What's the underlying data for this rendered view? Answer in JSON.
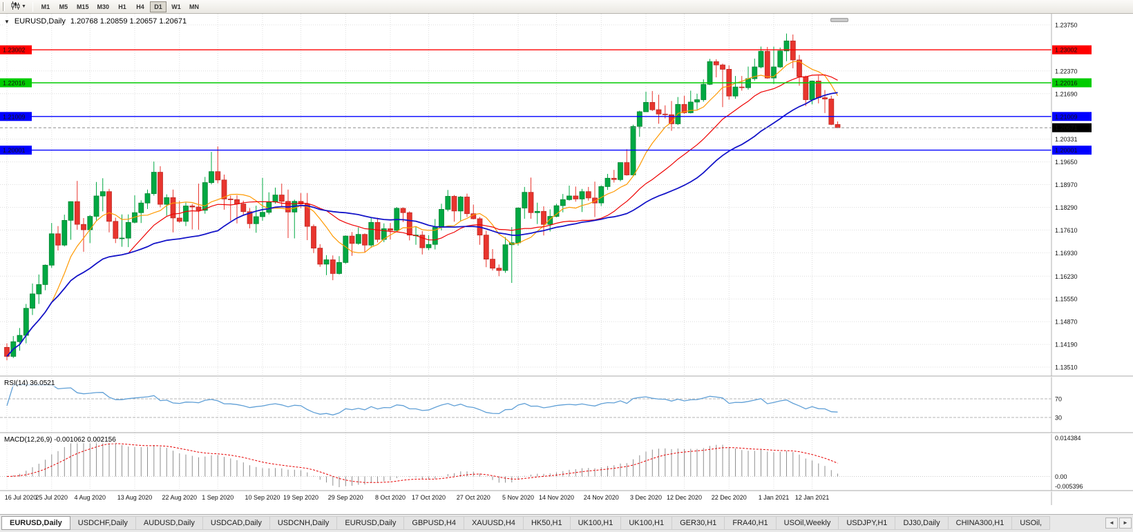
{
  "toolbar": {
    "chart_type_button": "candlestick-chart",
    "timeframes": [
      {
        "label": "M1",
        "active": false
      },
      {
        "label": "M5",
        "active": false
      },
      {
        "label": "M15",
        "active": false
      },
      {
        "label": "M30",
        "active": false
      },
      {
        "label": "H1",
        "active": false
      },
      {
        "label": "H4",
        "active": false
      },
      {
        "label": "D1",
        "active": true
      },
      {
        "label": "W1",
        "active": false
      },
      {
        "label": "MN",
        "active": false
      }
    ]
  },
  "chart": {
    "title": "EURUSD,Daily",
    "ohlc_text": "1.20768 1.20859 1.20657 1.20671",
    "collapse_glyph": "▼"
  },
  "tabs": {
    "items": [
      "EURUSD,Daily",
      "USDCHF,Daily",
      "AUDUSD,Daily",
      "USDCAD,Daily",
      "USDCNH,Daily",
      "EURUSD,Daily",
      "GBPUSD,H4",
      "XAUUSD,H4",
      "HK50,H1",
      "UK100,H1",
      "UK100,H1",
      "GER30,H1",
      "FRA40,H1",
      "USOil,Weekly",
      "USDJPY,H1",
      "DJ30,Daily",
      "CHINA300,H1",
      "USOil,"
    ],
    "active_index": 0,
    "scroll_left_glyph": "◄",
    "scroll_right_glyph": "►"
  },
  "chart_data": {
    "type": "candlestick",
    "symbol": "EURUSD",
    "period": "Daily",
    "quote": {
      "open": "1.20768",
      "high": "1.20859",
      "low": "1.20657",
      "close": "1.20671"
    },
    "start_date": "2020-07-16",
    "end_date": "2021-01-18",
    "candles": [
      [
        1.141,
        1.1422,
        1.1371,
        1.1383
      ],
      [
        1.1383,
        1.1444,
        1.1378,
        1.1427
      ],
      [
        1.1427,
        1.1468,
        1.14,
        1.1446
      ],
      [
        1.1446,
        1.154,
        1.1422,
        1.1527
      ],
      [
        1.1527,
        1.1601,
        1.1507,
        1.157
      ],
      [
        1.157,
        1.1628,
        1.154,
        1.1598
      ],
      [
        1.1598,
        1.1658,
        1.1581,
        1.1656
      ],
      [
        1.1656,
        1.1782,
        1.1648,
        1.175
      ],
      [
        1.175,
        1.1773,
        1.17,
        1.1716
      ],
      [
        1.1716,
        1.1807,
        1.1712,
        1.179
      ],
      [
        1.179,
        1.1847,
        1.1732,
        1.1846
      ],
      [
        1.1846,
        1.1908,
        1.1762,
        1.1778
      ],
      [
        1.1778,
        1.1797,
        1.1696,
        1.1762
      ],
      [
        1.1762,
        1.1806,
        1.1722,
        1.1802
      ],
      [
        1.1802,
        1.1905,
        1.179,
        1.1863
      ],
      [
        1.1863,
        1.1916,
        1.1817,
        1.1876
      ],
      [
        1.1876,
        1.1884,
        1.1754,
        1.1787
      ],
      [
        1.1787,
        1.1798,
        1.1722,
        1.1736
      ],
      [
        1.1736,
        1.1808,
        1.1711,
        1.1737
      ],
      [
        1.1737,
        1.1808,
        1.171,
        1.1784
      ],
      [
        1.1784,
        1.1865,
        1.1781,
        1.1813
      ],
      [
        1.1813,
        1.185,
        1.1782,
        1.1842
      ],
      [
        1.1842,
        1.1882,
        1.1824,
        1.187
      ],
      [
        1.187,
        1.1966,
        1.1864,
        1.1934
      ],
      [
        1.1934,
        1.1952,
        1.1829,
        1.1838
      ],
      [
        1.1838,
        1.1868,
        1.1804,
        1.1858
      ],
      [
        1.1858,
        1.1882,
        1.1754,
        1.1797
      ],
      [
        1.1797,
        1.1848,
        1.1783,
        1.1787
      ],
      [
        1.1787,
        1.1843,
        1.1773,
        1.1833
      ],
      [
        1.1833,
        1.1839,
        1.1763,
        1.183
      ],
      [
        1.183,
        1.19,
        1.1762,
        1.182
      ],
      [
        1.182,
        1.192,
        1.181,
        1.1903
      ],
      [
        1.1903,
        1.1995,
        1.1898,
        1.1936
      ],
      [
        1.1936,
        1.2011,
        1.1901,
        1.1911
      ],
      [
        1.1911,
        1.1927,
        1.1822,
        1.1854
      ],
      [
        1.1854,
        1.1864,
        1.1789,
        1.1852
      ],
      [
        1.1852,
        1.1865,
        1.1781,
        1.1839
      ],
      [
        1.1839,
        1.1849,
        1.1804,
        1.1816
      ],
      [
        1.1816,
        1.1827,
        1.1766,
        1.178
      ],
      [
        1.178,
        1.1834,
        1.1753,
        1.1801
      ],
      [
        1.1801,
        1.1917,
        1.1789,
        1.1814
      ],
      [
        1.1814,
        1.1874,
        1.1808,
        1.1845
      ],
      [
        1.1845,
        1.1888,
        1.184,
        1.1866
      ],
      [
        1.1866,
        1.19,
        1.1829,
        1.1847
      ],
      [
        1.1847,
        1.1882,
        1.1737,
        1.1815
      ],
      [
        1.1815,
        1.1852,
        1.1736,
        1.1847
      ],
      [
        1.1847,
        1.1872,
        1.1827,
        1.1839
      ],
      [
        1.1839,
        1.1872,
        1.1731,
        1.1772
      ],
      [
        1.1772,
        1.1778,
        1.1692,
        1.1707
      ],
      [
        1.1707,
        1.1719,
        1.1651,
        1.1659
      ],
      [
        1.1659,
        1.1686,
        1.1626,
        1.1672
      ],
      [
        1.1672,
        1.1685,
        1.1611,
        1.1631
      ],
      [
        1.1631,
        1.1683,
        1.1628,
        1.1664
      ],
      [
        1.1664,
        1.1745,
        1.166,
        1.1743
      ],
      [
        1.1743,
        1.1755,
        1.1684,
        1.1721
      ],
      [
        1.1721,
        1.1769,
        1.1717,
        1.1748
      ],
      [
        1.1748,
        1.1751,
        1.1695,
        1.1716
      ],
      [
        1.1716,
        1.1797,
        1.1708,
        1.1784
      ],
      [
        1.1784,
        1.1798,
        1.1724,
        1.1733
      ],
      [
        1.1733,
        1.1781,
        1.1725,
        1.1765
      ],
      [
        1.1765,
        1.1782,
        1.1733,
        1.176
      ],
      [
        1.176,
        1.183,
        1.1758,
        1.1826
      ],
      [
        1.1826,
        1.1829,
        1.1785,
        1.1813
      ],
      [
        1.1813,
        1.1817,
        1.173,
        1.1746
      ],
      [
        1.1746,
        1.1771,
        1.1717,
        1.1746
      ],
      [
        1.1746,
        1.1758,
        1.1688,
        1.1708
      ],
      [
        1.1708,
        1.1746,
        1.1701,
        1.1718
      ],
      [
        1.1718,
        1.1794,
        1.1703,
        1.1769
      ],
      [
        1.1769,
        1.184,
        1.176,
        1.1823
      ],
      [
        1.1823,
        1.1881,
        1.1817,
        1.1862
      ],
      [
        1.1862,
        1.1866,
        1.1786,
        1.1818
      ],
      [
        1.1818,
        1.1863,
        1.1787,
        1.186
      ],
      [
        1.186,
        1.187,
        1.18,
        1.181
      ],
      [
        1.181,
        1.1837,
        1.1793,
        1.1795
      ],
      [
        1.1795,
        1.18,
        1.1717,
        1.1746
      ],
      [
        1.1746,
        1.1759,
        1.165,
        1.1674
      ],
      [
        1.1674,
        1.1704,
        1.164,
        1.1647
      ],
      [
        1.1647,
        1.1658,
        1.1623,
        1.164
      ],
      [
        1.164,
        1.174,
        1.1633,
        1.1717
      ],
      [
        1.1717,
        1.177,
        1.1603,
        1.1723
      ],
      [
        1.1723,
        1.1829,
        1.1715,
        1.1827
      ],
      [
        1.1827,
        1.189,
        1.1795,
        1.1874
      ],
      [
        1.1874,
        1.1918,
        1.1795,
        1.1813
      ],
      [
        1.1813,
        1.1843,
        1.1779,
        1.1817
      ],
      [
        1.1817,
        1.1832,
        1.1745,
        1.1778
      ],
      [
        1.1778,
        1.1823,
        1.1757,
        1.1802
      ],
      [
        1.1802,
        1.184,
        1.1799,
        1.1834
      ],
      [
        1.1834,
        1.1869,
        1.1814,
        1.1852
      ],
      [
        1.1852,
        1.1894,
        1.1849,
        1.1863
      ],
      [
        1.1863,
        1.1891,
        1.1846,
        1.1854
      ],
      [
        1.1854,
        1.1884,
        1.1815,
        1.1876
      ],
      [
        1.1876,
        1.189,
        1.1849,
        1.1857
      ],
      [
        1.1857,
        1.1906,
        1.18,
        1.1842
      ],
      [
        1.1842,
        1.1895,
        1.1833,
        1.1891
      ],
      [
        1.1891,
        1.1929,
        1.1881,
        1.1916
      ],
      [
        1.1916,
        1.1941,
        1.1903,
        1.1912
      ],
      [
        1.1912,
        1.1963,
        1.1907,
        1.1963
      ],
      [
        1.1963,
        1.2003,
        1.1924,
        1.1926
      ],
      [
        1.1926,
        1.2076,
        1.1923,
        1.2071
      ],
      [
        1.2071,
        1.2118,
        1.204,
        1.2115
      ],
      [
        1.2115,
        1.2175,
        1.2114,
        1.2143
      ],
      [
        1.2143,
        1.2177,
        1.2117,
        1.2121
      ],
      [
        1.2121,
        1.2166,
        1.2079,
        1.2108
      ],
      [
        1.2108,
        1.2134,
        1.2095,
        1.2106
      ],
      [
        1.2106,
        1.2147,
        1.2058,
        1.2079
      ],
      [
        1.2079,
        1.2159,
        1.2075,
        1.2137
      ],
      [
        1.2137,
        1.2163,
        1.2109,
        1.2112
      ],
      [
        1.2112,
        1.2178,
        1.211,
        1.2144
      ],
      [
        1.2144,
        1.2169,
        1.2122,
        1.2151
      ],
      [
        1.2151,
        1.2212,
        1.2145,
        1.2197
      ],
      [
        1.2197,
        1.2273,
        1.2195,
        1.2265
      ],
      [
        1.2265,
        1.2272,
        1.2218,
        1.2255
      ],
      [
        1.2255,
        1.2259,
        1.2129,
        1.2242
      ],
      [
        1.2242,
        1.2254,
        1.2151,
        1.2162
      ],
      [
        1.2162,
        1.2222,
        1.2154,
        1.2189
      ],
      [
        1.2189,
        1.2222,
        1.2178,
        1.2187
      ],
      [
        1.2187,
        1.225,
        1.2181,
        1.2214
      ],
      [
        1.2214,
        1.2274,
        1.2208,
        1.2249
      ],
      [
        1.2249,
        1.231,
        1.2245,
        1.2296
      ],
      [
        1.2296,
        1.2309,
        1.2214,
        1.2216
      ],
      [
        1.2216,
        1.231,
        1.2198,
        1.2249
      ],
      [
        1.2249,
        1.2307,
        1.2246,
        1.2297
      ],
      [
        1.2297,
        1.2349,
        1.2266,
        1.2327
      ],
      [
        1.2327,
        1.2346,
        1.2245,
        1.227
      ],
      [
        1.227,
        1.2285,
        1.2193,
        1.222
      ],
      [
        1.222,
        1.2223,
        1.2132,
        1.2151
      ],
      [
        1.2151,
        1.2208,
        1.2137,
        1.2207
      ],
      [
        1.2207,
        1.2223,
        1.214,
        1.2157
      ],
      [
        1.2157,
        1.218,
        1.2111,
        1.2153
      ],
      [
        1.2153,
        1.2163,
        1.2075,
        1.2077
      ],
      [
        1.20768,
        1.20859,
        1.20657,
        1.20671
      ]
    ],
    "x_ticks": [
      {
        "index": 0,
        "label": "16 Jul 2020"
      },
      {
        "index": 7,
        "label": "25 Jul 2020"
      },
      {
        "index": 13,
        "label": "4 Aug 2020"
      },
      {
        "index": 20,
        "label": "13 Aug 2020"
      },
      {
        "index": 27,
        "label": "22 Aug 2020"
      },
      {
        "index": 33,
        "label": "1 Sep 2020"
      },
      {
        "index": 40,
        "label": "10 Sep 2020"
      },
      {
        "index": 46,
        "label": "19 Sep 2020"
      },
      {
        "index": 53,
        "label": "29 Sep 2020"
      },
      {
        "index": 60,
        "label": "8 Oct 2020"
      },
      {
        "index": 66,
        "label": "17 Oct 2020"
      },
      {
        "index": 73,
        "label": "27 Oct 2020"
      },
      {
        "index": 80,
        "label": "5 Nov 2020"
      },
      {
        "index": 86,
        "label": "14 Nov 2020"
      },
      {
        "index": 93,
        "label": "24 Nov 2020"
      },
      {
        "index": 100,
        "label": "3 Dec 2020"
      },
      {
        "index": 106,
        "label": "12 Dec 2020"
      },
      {
        "index": 113,
        "label": "22 Dec 2020"
      },
      {
        "index": 120,
        "label": "1 Jan 2021"
      },
      {
        "index": 126,
        "label": "12 Jan 2021"
      }
    ],
    "y_axis_labels": [
      "1.23750",
      "1.22370",
      "1.21690",
      "1.20331",
      "1.19650",
      "1.18970",
      "1.18290",
      "1.17610",
      "1.16930",
      "1.16230",
      "1.15550",
      "1.14870",
      "1.14190",
      "1.13510"
    ],
    "hlines": [
      {
        "price": 1.23002,
        "label": "1.23002",
        "color": "#ff0000"
      },
      {
        "price": 1.22016,
        "label": "1.22016",
        "color": "#00cc00"
      },
      {
        "price": 1.21009,
        "label": "1.21009",
        "color": "#0000ff"
      },
      {
        "price": 1.20001,
        "label": "1.20001",
        "color": "#0000ff"
      }
    ],
    "current_price": {
      "value": 1.20671,
      "label": "1.20671"
    },
    "moving_averages": [
      {
        "period": 8,
        "color": "#ff9900"
      },
      {
        "period": 20,
        "color": "#ee0000"
      },
      {
        "period": 34,
        "color": "#1414c8"
      }
    ],
    "colors": {
      "up": "#00a843",
      "up_border": "#00832f",
      "down": "#e8352e",
      "down_border": "#bf2a24",
      "grid": "#dcdcdc",
      "bid_line": "#8a8a8a"
    },
    "rsi": {
      "label": "RSI(14) 36.0521",
      "period": 14,
      "value": 36.0521,
      "levels": [
        "70",
        "30"
      ],
      "color": "#5f9fd6"
    },
    "macd": {
      "label": "MACD(12,26,9) -0.001062 0.002156",
      "macd_value": "-0.001062",
      "signal_value": "0.002156",
      "axis_labels": [
        "0.014384",
        "0.00",
        "-0.005396"
      ],
      "hist_color": "#8f8f8f",
      "signal_color": "#e60000"
    }
  }
}
